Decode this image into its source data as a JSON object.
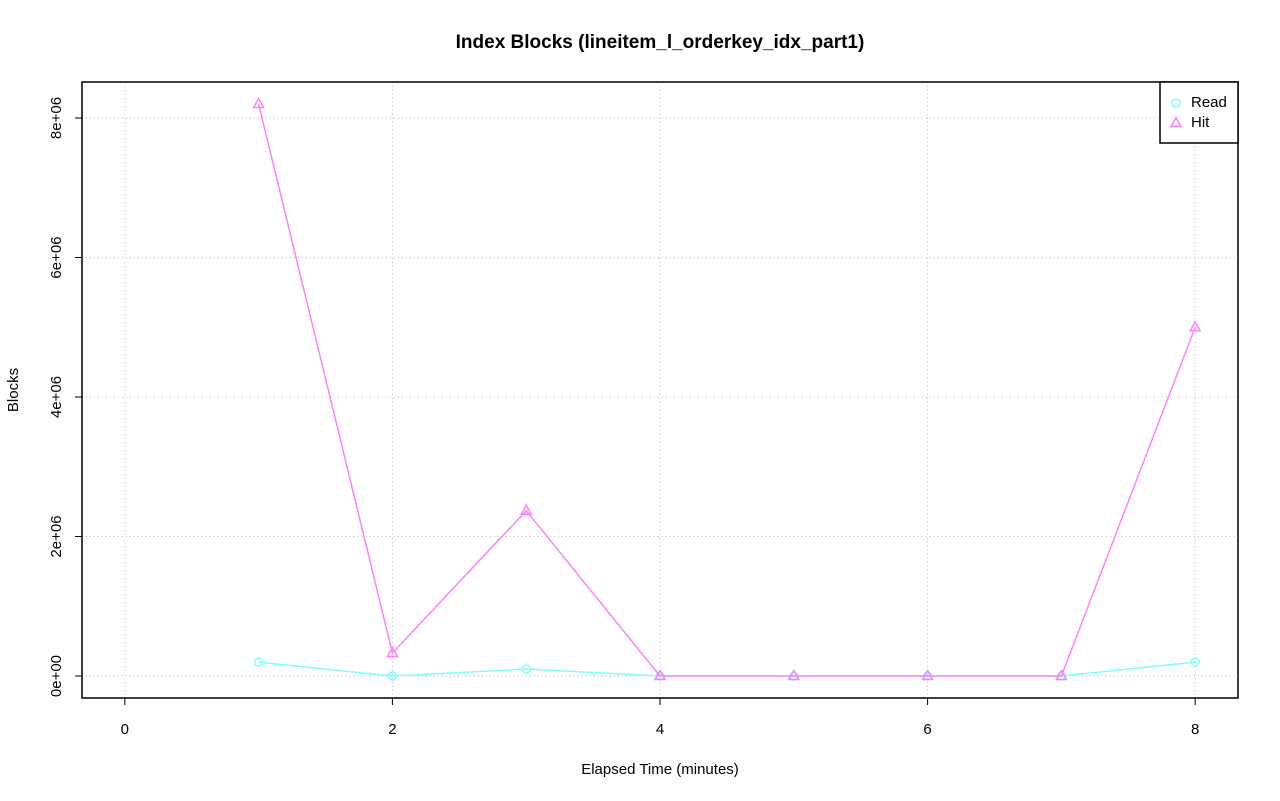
{
  "chart_data": {
    "type": "line",
    "title": "Index Blocks (lineitem_l_orderkey_idx_part1)",
    "x_label": "Elapsed Time (minutes)",
    "y_label": "Blocks",
    "x": [
      1,
      2,
      3,
      4,
      5,
      6,
      7,
      8
    ],
    "series": [
      {
        "name": "Read",
        "color": "#80ffff",
        "marker": "circle",
        "values": [
          200000,
          0,
          100000,
          0,
          0,
          0,
          0,
          200000
        ]
      },
      {
        "name": "Hit",
        "color": "#ff80ff",
        "marker": "triangle",
        "values": [
          8200000,
          330000,
          2370000,
          0,
          0,
          0,
          0,
          5000000
        ]
      }
    ],
    "xlim": [
      -0.32,
      8.32
    ],
    "ylim": [
      -315000,
      8516000
    ],
    "xticks": [
      0,
      2,
      4,
      6,
      8
    ],
    "yticks": [
      {
        "value": 0,
        "label": "0e+00"
      },
      {
        "value": 2000000,
        "label": "2e+06"
      },
      {
        "value": 4000000,
        "label": "4e+06"
      },
      {
        "value": 6000000,
        "label": "6e+06"
      },
      {
        "value": 8000000,
        "label": "8e+06"
      }
    ],
    "grid": true,
    "legend": "top-right"
  }
}
